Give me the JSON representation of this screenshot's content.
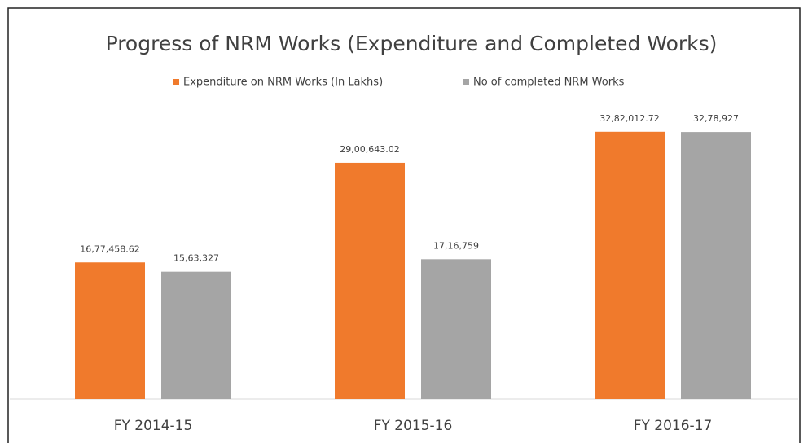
{
  "chart_data": {
    "type": "bar",
    "title": "Progress of NRM Works (Expenditure and Completed Works)",
    "categories": [
      "FY 2014-15",
      "FY 2015-16",
      "FY 2016-17"
    ],
    "series": [
      {
        "name": "Expenditure on NRM Works  (In Lakhs)",
        "color": "#f07a2c",
        "values": [
          1677458.62,
          2900643.02,
          3282012.72
        ],
        "value_labels": [
          "16,77,458.62",
          "29,00,643.02",
          "32,82,012.72"
        ]
      },
      {
        "name": "No of completed NRM Works",
        "color": "#a5a5a5",
        "values": [
          1563327,
          1716759,
          3278927
        ],
        "value_labels": [
          "15,63,327",
          "17,16,759",
          "32,78,927"
        ]
      }
    ],
    "ylim": [
      0,
      3500000
    ],
    "legend": "top"
  }
}
